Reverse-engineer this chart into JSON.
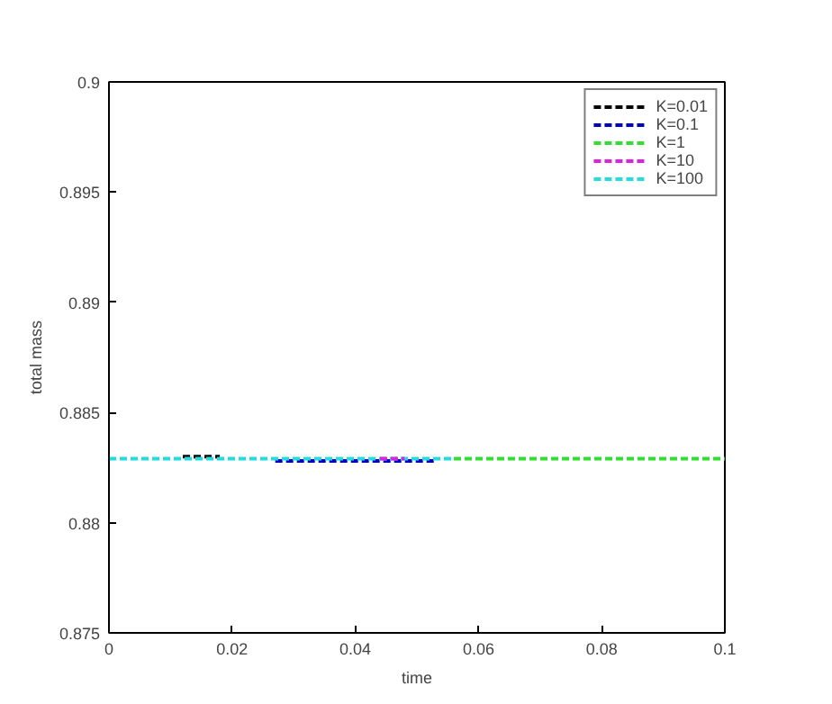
{
  "chart_data": {
    "type": "line",
    "xlabel": "time",
    "ylabel": "total mass",
    "xlim": [
      0,
      0.1
    ],
    "ylim": [
      0.875,
      0.9
    ],
    "xticks": [
      0,
      0.02,
      0.04,
      0.06,
      0.08,
      0.1
    ],
    "yticks": [
      0.875,
      0.88,
      0.885,
      0.89,
      0.895,
      0.9
    ],
    "grid": false,
    "legend": "top right",
    "line_style": "dashed",
    "marker": "none",
    "series": [
      {
        "name": "K=0.01",
        "color": "#000000",
        "x": [
          0.012,
          0.018
        ],
        "values": [
          0.883,
          0.883
        ]
      },
      {
        "name": "K=0.1",
        "color": "#0000bf",
        "x": [
          0.027,
          0.053
        ],
        "values": [
          0.8828,
          0.8828
        ]
      },
      {
        "name": "K=1",
        "color": "#33dd33",
        "x": [
          0.056,
          0.1
        ],
        "values": [
          0.8829,
          0.8829
        ]
      },
      {
        "name": "K=10",
        "color": "#dd22dd",
        "x": [
          0.044,
          0.048
        ],
        "values": [
          0.8829,
          0.8829
        ]
      },
      {
        "name": "K=100",
        "color": "#22dddd",
        "x": [
          0,
          0.056
        ],
        "values": [
          0.8829,
          0.8829
        ]
      }
    ]
  }
}
